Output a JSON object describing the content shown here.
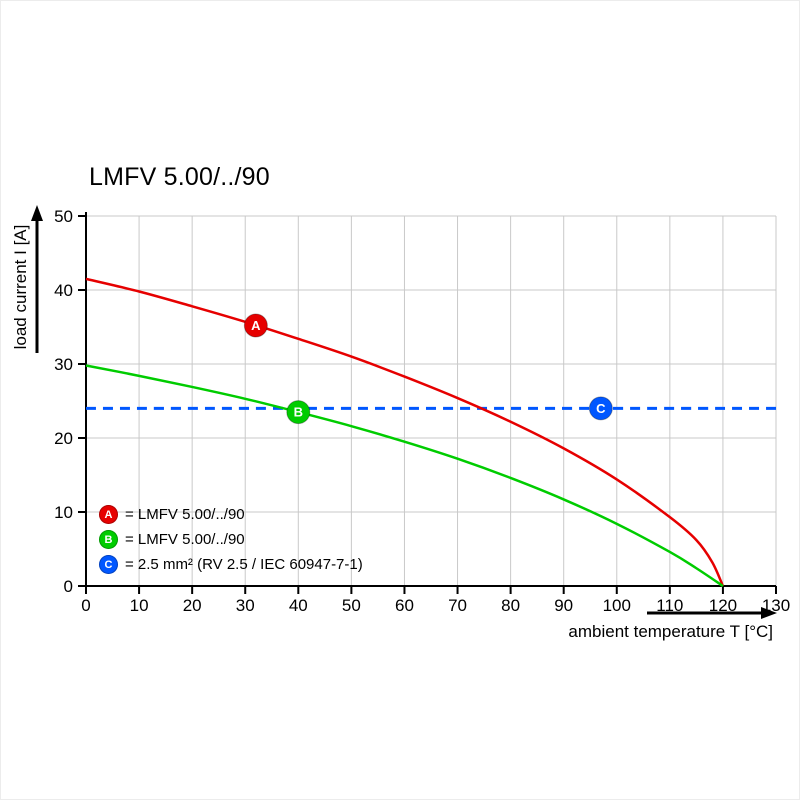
{
  "chart_data": {
    "type": "line",
    "title": "LMFV 5.00/../90",
    "xlabel": "ambient temperature T [°C]",
    "ylabel": "load current I [A]",
    "xlim": [
      0,
      130
    ],
    "ylim": [
      0,
      50
    ],
    "x_ticks": [
      0,
      10,
      20,
      30,
      40,
      50,
      60,
      70,
      80,
      90,
      100,
      110,
      120,
      130
    ],
    "y_ticks": [
      0,
      10,
      20,
      30,
      40,
      50
    ],
    "grid": true,
    "grid_color": "#c9c9c9",
    "axis_color": "#000000",
    "series": [
      {
        "name": "A",
        "label": "LMFV 5.00/../90",
        "color": "#e60000",
        "style": "solid",
        "points": [
          [
            0,
            41.5
          ],
          [
            10,
            39.8
          ],
          [
            20,
            37.8
          ],
          [
            30,
            35.7
          ],
          [
            40,
            33.4
          ],
          [
            50,
            31.0
          ],
          [
            60,
            28.3
          ],
          [
            70,
            25.4
          ],
          [
            80,
            22.2
          ],
          [
            90,
            18.6
          ],
          [
            100,
            14.4
          ],
          [
            110,
            9.3
          ],
          [
            115,
            6.2
          ],
          [
            118,
            3.2
          ],
          [
            120,
            0
          ]
        ],
        "marker": {
          "x": 32,
          "y": 35.2,
          "letter": "A"
        }
      },
      {
        "name": "B",
        "label": "LMFV 5.00/../90",
        "color": "#00cc00",
        "style": "solid",
        "points": [
          [
            0,
            29.8
          ],
          [
            10,
            28.4
          ],
          [
            20,
            26.9
          ],
          [
            30,
            25.3
          ],
          [
            40,
            23.5
          ],
          [
            50,
            21.6
          ],
          [
            60,
            19.5
          ],
          [
            70,
            17.2
          ],
          [
            80,
            14.6
          ],
          [
            90,
            11.7
          ],
          [
            100,
            8.4
          ],
          [
            110,
            4.6
          ],
          [
            115,
            2.4
          ],
          [
            120,
            0
          ]
        ],
        "marker": {
          "x": 40,
          "y": 23.5,
          "letter": "B"
        }
      },
      {
        "name": "C",
        "label": "2.5 mm² (RV 2.5 / IEC 60947-7-1)",
        "color": "#0057ff",
        "style": "dashed",
        "points": [
          [
            0,
            24
          ],
          [
            130,
            24
          ]
        ],
        "marker": {
          "x": 97,
          "y": 24,
          "letter": "C"
        }
      }
    ],
    "legend_position": "lower-left",
    "legend": [
      {
        "letter": "A",
        "color": "#e60000",
        "text": "= LMFV 5.00/../90"
      },
      {
        "letter": "B",
        "color": "#00cc00",
        "text": "= LMFV 5.00/../90"
      },
      {
        "letter": "C",
        "color": "#0057ff",
        "text": "= 2.5 mm² (RV 2.5 / IEC 60947-7-1)"
      }
    ]
  }
}
